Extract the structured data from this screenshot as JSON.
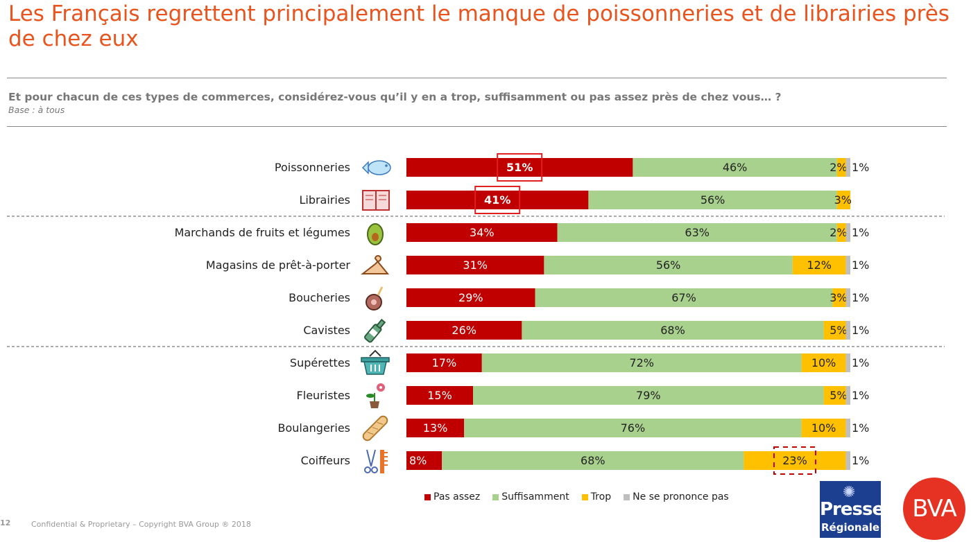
{
  "title": "Les Français regrettent principalement le manque de poissonneries et de librairies près de chez eux",
  "question": "Et pour chacun de ces types de commerces, considérez-vous qu’il y en a trop, suffisamment ou pas assez près de chez vous… ?",
  "base": "Base : à tous",
  "footer": "Confidential & Proprietary – Copyright BVA Group ®  2018",
  "page_number": "12",
  "logos": {
    "presse_line1": "Presse",
    "presse_line2": "Régionale",
    "bva": "BVA"
  },
  "colors": {
    "title": "#E8531E",
    "pas_assez": "#C00000",
    "suffisamment": "#A9D18E",
    "trop": "#FFC000",
    "nsp": "#BFBFBF"
  },
  "chart_data": {
    "type": "bar",
    "orientation": "horizontal-stacked-100",
    "categories": [
      "Poissonneries",
      "Librairies",
      "Marchands de fruits et légumes",
      "Magasins de prêt-à-porter",
      "Boucheries",
      "Cavistes",
      "Supérettes",
      "Fleuristes",
      "Boulangeries",
      "Coiffeurs"
    ],
    "icons": [
      "fish-icon",
      "book-icon",
      "avocado-icon",
      "hanger-icon",
      "meat-icon",
      "wine-bottle-icon",
      "basket-icon",
      "flower-pot-icon",
      "baguette-icon",
      "scissors-comb-icon"
    ],
    "series": [
      {
        "name": "Pas assez",
        "color": "#C00000",
        "values": [
          51,
          41,
          34,
          31,
          29,
          26,
          17,
          15,
          13,
          8
        ]
      },
      {
        "name": "Suffisamment",
        "color": "#A9D18E",
        "values": [
          46,
          56,
          63,
          56,
          67,
          68,
          72,
          79,
          76,
          68
        ]
      },
      {
        "name": "Trop",
        "color": "#FFC000",
        "values": [
          2,
          3,
          2,
          12,
          3,
          5,
          10,
          5,
          10,
          23
        ]
      },
      {
        "name": "Ne se prononce pas",
        "color": "#BFBFBF",
        "values": [
          1,
          null,
          1,
          1,
          1,
          1,
          1,
          1,
          1,
          1
        ]
      }
    ],
    "highlights": [
      "Poissonneries: Pas assez",
      "Librairies: Pas assez",
      "Coiffeurs: Trop"
    ],
    "legend_position": "bottom",
    "group_separators_after": [
      "Librairies",
      "Cavistes"
    ]
  }
}
